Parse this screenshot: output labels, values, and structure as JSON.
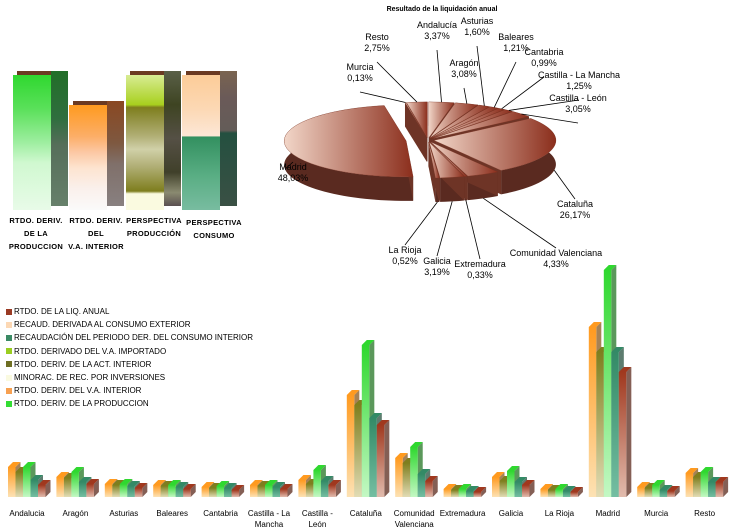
{
  "chart_data": [
    {
      "type": "bar",
      "subtype": "stacked-3d",
      "categories": [
        "RTDO. DERIV. DE LA PRODUCCION",
        "RTDO. DERIV. DEL V.A. INTERIOR",
        "PERSPECTIVA PRODUCCIÓN",
        "PERSPECTIVA CONSUMO"
      ],
      "category_lines": [
        [
          "RTDO. DERIV. DE LA",
          "PRODUCCION"
        ],
        [
          "RTDO. DERIV. DEL",
          "V.A. INTERIOR"
        ],
        [
          "PERSPECTIVA",
          "PRODUCCIÓN"
        ],
        [
          "PERSPECTIVA",
          "CONSUMO"
        ]
      ],
      "relative_totals": [
        100,
        78,
        100,
        100
      ]
    },
    {
      "type": "pie",
      "style": "3d-exploded",
      "title": "Resultado de la liquidación anual",
      "slices": [
        {
          "label": "Andalucía",
          "value": 3.37,
          "text": "3,37%"
        },
        {
          "label": "Aragón",
          "value": 3.08,
          "text": "3,08%"
        },
        {
          "label": "Asturias",
          "value": 1.6,
          "text": "1,60%"
        },
        {
          "label": "Baleares",
          "value": 1.21,
          "text": "1,21%"
        },
        {
          "label": "Cantabria",
          "value": 0.99,
          "text": "0,99%"
        },
        {
          "label": "Castilla - La Mancha",
          "value": 1.25,
          "text": "1,25%"
        },
        {
          "label": "Castilla - León",
          "value": 3.05,
          "text": "3,05%"
        },
        {
          "label": "Cataluña",
          "value": 26.17,
          "text": "26,17%"
        },
        {
          "label": "Comunidad Valenciana",
          "value": 4.33,
          "text": "4,33%"
        },
        {
          "label": "Extremadura",
          "value": 0.33,
          "text": "0,33%"
        },
        {
          "label": "Galicia",
          "value": 3.19,
          "text": "3,19%"
        },
        {
          "label": "La Rioja",
          "value": 0.52,
          "text": "0,52%"
        },
        {
          "label": "Madrid",
          "value": 48.03,
          "text": "48,03%"
        },
        {
          "label": "Murcia",
          "value": 0.13,
          "text": "0,13%"
        },
        {
          "label": "Resto",
          "value": 2.75,
          "text": "2,75%"
        }
      ],
      "colors": {
        "light": "#f2d6c8",
        "dark": "#8b2e1c",
        "side": "#5a2a20"
      }
    },
    {
      "type": "bar",
      "subtype": "grouped-3d",
      "categories": [
        "Andalucia",
        "Aragón",
        "Asturias",
        "Baleares",
        "Cantabria",
        "Castilla - La Mancha",
        "Castilla - León",
        "Cataluña",
        "Comunidad Valenciana",
        "Extremadura",
        "Galicia",
        "La Rioja",
        "Madrid",
        "Murcia",
        "Resto"
      ],
      "category_lines": [
        [
          "Andalucia"
        ],
        [
          "Aragón"
        ],
        [
          "Asturias"
        ],
        [
          "Baleares"
        ],
        [
          "Cantabria"
        ],
        [
          "Castilla - La",
          "Mancha"
        ],
        [
          "Castilla -",
          "León"
        ],
        [
          "Cataluña"
        ],
        [
          "Comunidad",
          "Valenciana"
        ],
        [
          "Extremadura"
        ],
        [
          "Galicia"
        ],
        [
          "La Rioja"
        ],
        [
          "Madrid"
        ],
        [
          "Murcia"
        ],
        [
          "Resto"
        ]
      ],
      "series": [
        {
          "color_top": "#ff9a1f",
          "color_bottom": "#fde2b4",
          "values": [
            30,
            20,
            13,
            12,
            10,
            12,
            17,
            102,
            39,
            8,
            20,
            8,
            170,
            10,
            24
          ]
        },
        {
          "color_top": "#7e7e1e",
          "color_bottom": "#e2dcb4",
          "values": [
            25,
            19,
            12,
            11,
            9,
            11,
            13,
            92,
            34,
            7,
            16,
            7,
            145,
            9,
            20
          ]
        },
        {
          "color_top": "#2fd82f",
          "color_bottom": "#c4f8c4",
          "values": [
            30,
            25,
            13,
            12,
            11,
            12,
            27,
            152,
            50,
            8,
            26,
            8,
            227,
            12,
            25
          ]
        },
        {
          "color_top": "#338a66",
          "color_bottom": "#74bea2",
          "values": [
            17,
            15,
            11,
            10,
            9,
            10,
            16,
            79,
            23,
            6,
            15,
            6,
            145,
            7,
            15
          ]
        },
        {
          "color_top": "#a0381e",
          "color_bottom": "#e2bcae",
          "values": [
            12,
            13,
            9,
            8,
            7,
            8,
            12,
            72,
            16,
            5,
            12,
            5,
            125,
            6,
            15
          ]
        }
      ],
      "legend": [
        {
          "label": "RTDO. DE LA LIQ. ANUAL",
          "color": "#9a3a24"
        },
        {
          "label": "RECAUD. DERIVADA AL CONSUMO EXTERIOR",
          "color": "#fcd8b4"
        },
        {
          "label": "RECAUDACIÓN DEL PERIODO DER. DEL CONSUMO INTERIOR",
          "color": "#3a8a64"
        },
        {
          "label": "RTDO. DERIVADO DEL V.A. IMPORTADO",
          "color": "#9acd20"
        },
        {
          "label": "RTDO. DERIV. DE LA ACT. INTERIOR",
          "color": "#6e6e22"
        },
        {
          "label": "MINORAC. DE REC. POR INVERSIONES",
          "color": "#fafae0"
        },
        {
          "label": "RTDO. DERIV. DEL V.A. INTERIOR",
          "color": "#f7a050"
        },
        {
          "label": "RTDO. DERIV. DE LA PRODUCCION",
          "color": "#33dd33"
        }
      ],
      "legend_position": "left"
    }
  ]
}
